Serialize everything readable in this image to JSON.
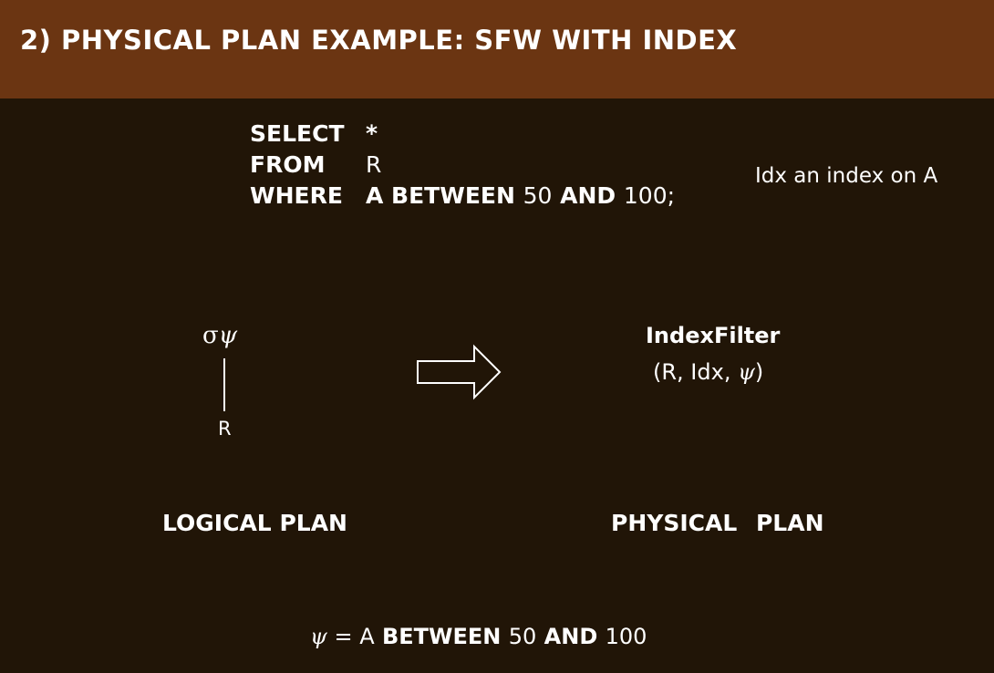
{
  "title": "2) PHYSICAL PLAN EXAMPLE: SFW WITH INDEX",
  "sql": {
    "select_kw": "SELECT",
    "select_val": "*",
    "from_kw": "FROM",
    "from_val": "R",
    "where_kw": "WHERE",
    "where_val_1": "A BETWEEN",
    "where_num_1": "50",
    "where_and": "AND",
    "where_num_2": "100;"
  },
  "index_note": "Idx an index on A",
  "logical": {
    "sigma": "σ",
    "psi": "ψ",
    "relation": "R",
    "label": "LOGICAL PLAN"
  },
  "physical": {
    "operator": "IndexFilter",
    "args_prefix": "(R, Idx, ",
    "args_psi": "ψ",
    "args_suffix": ")",
    "label": "PHYSICAL PLAN"
  },
  "footnote": {
    "psi": "ψ",
    "equals": " = ",
    "pred_1": "A",
    "pred_between": " BETWEEN ",
    "num_1": "50",
    "and": " AND ",
    "num_2": "100"
  },
  "colors": {
    "title_bar": "#6b3512",
    "background": "#211507",
    "text": "#ffffff"
  }
}
